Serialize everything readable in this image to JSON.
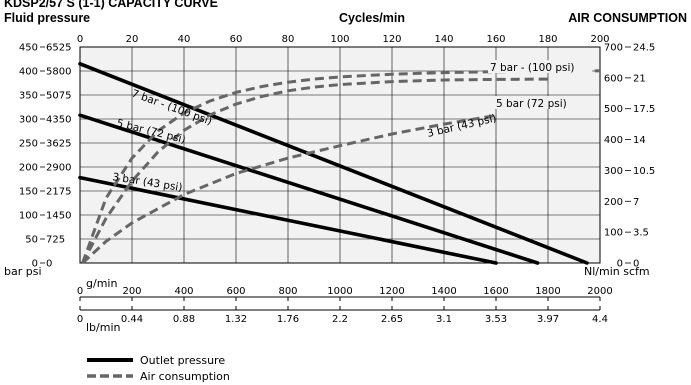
{
  "header": {
    "truncated_title": "KDSP2/57 S (1-1) CAPACITY CURVE",
    "left_title": "Fluid pressure",
    "center_title": "Cycles/min",
    "right_title": "AIR CONSUMPTION"
  },
  "axes": {
    "left_unit_label": "bar psi",
    "right_unit_label": "Nl/min scfm",
    "flow_unit_gmin": "g/min",
    "flow_unit_lbmin": "lb/min"
  },
  "legend": {
    "outlet": "Outlet pressure",
    "air": "Air consumption"
  },
  "chart_data": {
    "type": "line",
    "title": "",
    "x_top": {
      "label": "Cycles/min",
      "range": [
        0,
        200
      ],
      "ticks": [
        "0",
        "20",
        "40",
        "60",
        "80",
        "100",
        "120",
        "140",
        "160",
        "180",
        "200"
      ]
    },
    "x_bottom_gmin": {
      "label": "g/min",
      "range": [
        0,
        2000
      ],
      "ticks": [
        "0",
        "200",
        "400",
        "600",
        "800",
        "1000",
        "1200",
        "1400",
        "1600",
        "1800",
        "2000"
      ]
    },
    "x_bottom_lbmin": {
      "label": "lb/min",
      "ticks": [
        "0",
        "0.44",
        "0.88",
        "1.32",
        "1.76",
        "2.2",
        "2.65",
        "3.1",
        "3.53",
        "3.97",
        "4.4"
      ]
    },
    "y_left": {
      "label": "Fluid pressure",
      "range": [
        0,
        450
      ],
      "bar_ticks": [
        "0",
        "50",
        "100",
        "150",
        "200",
        "250",
        "300",
        "350",
        "400",
        "450"
      ],
      "psi_ticks": [
        "0",
        "725",
        "1450",
        "2175",
        "2900",
        "3625",
        "4350",
        "5075",
        "5800",
        "6525"
      ]
    },
    "y_right": {
      "label": "AIR CONSUMPTION",
      "range": [
        0,
        700
      ],
      "nl_ticks": [
        "0",
        "100",
        "200",
        "300",
        "400",
        "500",
        "600",
        "700"
      ],
      "scfm_ticks": [
        "0",
        "3.5",
        "7",
        "10.5",
        "14",
        "17.5",
        "21",
        "24.5"
      ]
    },
    "grid": true,
    "legend_position": "bottom-left",
    "series": [
      {
        "group": "Outlet pressure",
        "label": "7 bar - (100 psi)",
        "axis": "left",
        "style": "solid",
        "points": [
          [
            0,
            415
          ],
          [
            195,
            0
          ]
        ]
      },
      {
        "group": "Outlet pressure",
        "label": "5 bar (72 psi)",
        "axis": "left",
        "style": "solid",
        "points": [
          [
            0,
            308
          ],
          [
            176,
            0
          ]
        ]
      },
      {
        "group": "Outlet pressure",
        "label": "3 bar (43 psi)",
        "axis": "left",
        "style": "solid",
        "points": [
          [
            0,
            178
          ],
          [
            160,
            0
          ]
        ]
      },
      {
        "group": "Air consumption",
        "label": "7 bar - (100 psi)",
        "axis": "right",
        "style": "dashed",
        "points": [
          [
            1,
            0
          ],
          [
            10,
            210
          ],
          [
            20,
            340
          ],
          [
            30,
            428
          ],
          [
            40,
            486
          ],
          [
            50,
            525
          ],
          [
            60,
            553
          ],
          [
            70,
            572
          ],
          [
            80,
            586
          ],
          [
            90,
            596
          ],
          [
            100,
            603
          ],
          [
            120,
            612
          ],
          [
            140,
            617
          ],
          [
            160,
            620
          ],
          [
            180,
            622
          ],
          [
            200,
            623
          ]
        ]
      },
      {
        "group": "Air consumption",
        "label": "5 bar (72 psi)",
        "axis": "right",
        "style": "dashed",
        "points": [
          [
            1,
            0
          ],
          [
            10,
            145
          ],
          [
            20,
            265
          ],
          [
            30,
            360
          ],
          [
            40,
            430
          ],
          [
            50,
            480
          ],
          [
            60,
            515
          ],
          [
            70,
            540
          ],
          [
            80,
            558
          ],
          [
            90,
            570
          ],
          [
            100,
            578
          ],
          [
            120,
            588
          ],
          [
            140,
            593
          ],
          [
            160,
            595
          ],
          [
            180,
            596
          ]
        ]
      },
      {
        "group": "Air consumption",
        "label": "3 bar (43 psi)",
        "axis": "right",
        "style": "dashed",
        "points": [
          [
            1,
            0
          ],
          [
            10,
            70
          ],
          [
            20,
            130
          ],
          [
            40,
            222
          ],
          [
            60,
            290
          ],
          [
            80,
            340
          ],
          [
            100,
            380
          ],
          [
            120,
            418
          ],
          [
            140,
            450
          ],
          [
            160,
            478
          ]
        ]
      }
    ],
    "annotations": [
      {
        "text": "7 bar - (100 psi)",
        "series": "Outlet pressure"
      },
      {
        "text": "5 bar (72 psi)",
        "series": "Outlet pressure"
      },
      {
        "text": "3 bar (43 psi)",
        "series": "Outlet pressure"
      },
      {
        "text": "7 bar - (100 psi)",
        "series": "Air consumption"
      },
      {
        "text": "5 bar (72 psi)",
        "series": "Air consumption"
      },
      {
        "text": "3 bar (43 psi)",
        "series": "Air consumption"
      }
    ]
  }
}
